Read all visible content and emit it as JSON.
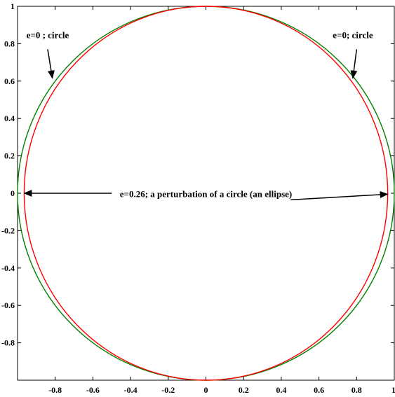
{
  "chart_data": {
    "type": "line",
    "title": "",
    "xlabel": "",
    "ylabel": "",
    "xlim": [
      -1,
      1
    ],
    "ylim": [
      -1,
      1
    ],
    "grid": false,
    "x_ticks": [
      -0.8,
      -0.6,
      -0.4,
      -0.2,
      0,
      0.2,
      0.4,
      0.6,
      0.8
    ],
    "x_tick_labels": [
      "-0.8",
      "-0.6",
      "-0.4",
      "-0.2",
      "0",
      "0.2",
      "0.4",
      "0.6",
      "0.8"
    ],
    "x_edge_label": "1",
    "y_ticks": [
      -0.8,
      -0.6,
      -0.4,
      -0.2,
      0,
      0.2,
      0.4,
      0.6,
      0.8,
      1
    ],
    "y_tick_labels": [
      "-0.8",
      "-0.6",
      "-0.4",
      "-0.2",
      "0",
      "0.2",
      "0.4",
      "0.6",
      "0.8",
      "1"
    ],
    "series": [
      {
        "color": "#008000",
        "shape": "circle",
        "center": [
          0,
          0
        ],
        "semi_axis_x": 1.0,
        "semi_axis_y": 1.0
      },
      {
        "color": "#ff0000",
        "shape": "ellipse",
        "center": [
          0,
          0
        ],
        "semi_axis_x": 0.965,
        "semi_axis_y": 1.0
      }
    ],
    "annotations": [
      {
        "text": "e=0 ; circle",
        "text_anchor": [
          -0.84,
          0.83
        ],
        "arrow_from": [
          -0.84,
          0.77
        ],
        "arrow_to": [
          -0.815,
          0.615
        ]
      },
      {
        "text": "e=0; circle",
        "text_anchor": [
          0.78,
          0.83
        ],
        "arrow_from": [
          0.8,
          0.77
        ],
        "arrow_to": [
          0.78,
          0.615
        ]
      },
      {
        "text": "e=0.26; a perturbation of a circle (an ellipse)",
        "text_anchor": [
          0.0,
          -0.02
        ],
        "arrows": [
          {
            "from": [
              -0.5,
              0.0
            ],
            "to": [
              -0.965,
              0.0
            ]
          },
          {
            "from": [
              0.45,
              -0.035
            ],
            "to": [
              0.965,
              -0.005
            ]
          }
        ]
      }
    ]
  }
}
